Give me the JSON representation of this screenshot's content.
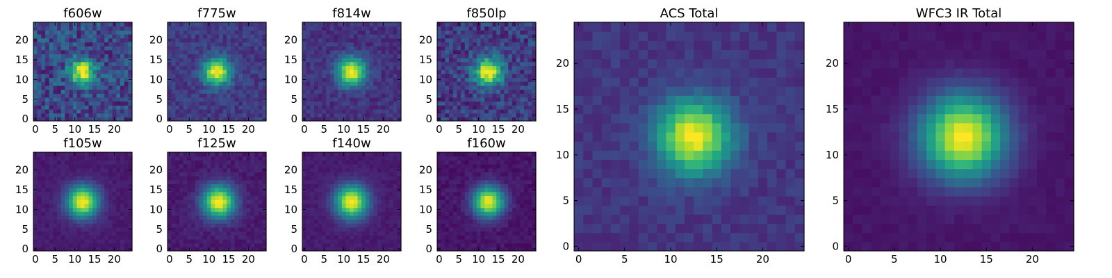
{
  "chart_data": [
    {
      "type": "heatmap",
      "title": "f606w",
      "xticks": [
        "0",
        "5",
        "10",
        "15",
        "20"
      ],
      "yticks": [
        "0",
        "5",
        "10",
        "15",
        "20"
      ],
      "xlim": [
        -0.5,
        24.5
      ],
      "ylim": [
        -0.5,
        24.5
      ],
      "grid_size": 25,
      "center": [
        12,
        12
      ],
      "sigma": 2.2,
      "background": 0.22,
      "noise": 0.16,
      "seed": 11,
      "colormap": "viridis"
    },
    {
      "type": "heatmap",
      "title": "f775w",
      "xticks": [
        "0",
        "5",
        "10",
        "15",
        "20"
      ],
      "yticks": [
        "0",
        "5",
        "10",
        "15",
        "20"
      ],
      "xlim": [
        -0.5,
        24.5
      ],
      "ylim": [
        -0.5,
        24.5
      ],
      "grid_size": 25,
      "center": [
        12,
        12
      ],
      "sigma": 2.4,
      "background": 0.18,
      "noise": 0.08,
      "seed": 23,
      "colormap": "viridis"
    },
    {
      "type": "heatmap",
      "title": "f814w",
      "xticks": [
        "0",
        "5",
        "10",
        "15",
        "20"
      ],
      "yticks": [
        "0",
        "5",
        "10",
        "15",
        "20"
      ],
      "xlim": [
        -0.5,
        24.5
      ],
      "ylim": [
        -0.5,
        24.5
      ],
      "grid_size": 25,
      "center": [
        12,
        12
      ],
      "sigma": 2.5,
      "background": 0.15,
      "noise": 0.07,
      "seed": 37,
      "colormap": "viridis"
    },
    {
      "type": "heatmap",
      "title": "f850lp",
      "xticks": [
        "0",
        "5",
        "10",
        "15",
        "20"
      ],
      "yticks": [
        "0",
        "5",
        "10",
        "15",
        "20"
      ],
      "xlim": [
        -0.5,
        24.5
      ],
      "ylim": [
        -0.5,
        24.5
      ],
      "grid_size": 25,
      "center": [
        12.5,
        12
      ],
      "sigma": 2.5,
      "background": 0.18,
      "noise": 0.13,
      "seed": 41,
      "colormap": "viridis"
    },
    {
      "type": "heatmap",
      "title": "f105w",
      "xticks": [
        "0",
        "5",
        "10",
        "15",
        "20"
      ],
      "yticks": [
        "0",
        "5",
        "10",
        "15",
        "20"
      ],
      "xlim": [
        -0.5,
        24.5
      ],
      "ylim": [
        -0.5,
        24.5
      ],
      "grid_size": 25,
      "center": [
        12,
        12
      ],
      "sigma": 2.8,
      "background": 0.08,
      "noise": 0.03,
      "seed": 53,
      "colormap": "viridis"
    },
    {
      "type": "heatmap",
      "title": "f125w",
      "xticks": [
        "0",
        "5",
        "10",
        "15",
        "20"
      ],
      "yticks": [
        "0",
        "5",
        "10",
        "15",
        "20"
      ],
      "xlim": [
        -0.5,
        24.5
      ],
      "ylim": [
        -0.5,
        24.5
      ],
      "grid_size": 25,
      "center": [
        12.5,
        12
      ],
      "sigma": 2.9,
      "background": 0.08,
      "noise": 0.04,
      "seed": 67,
      "colormap": "viridis"
    },
    {
      "type": "heatmap",
      "title": "f140w",
      "xticks": [
        "0",
        "5",
        "10",
        "15",
        "20"
      ],
      "yticks": [
        "0",
        "5",
        "10",
        "15",
        "20"
      ],
      "xlim": [
        -0.5,
        24.5
      ],
      "ylim": [
        -0.5,
        24.5
      ],
      "grid_size": 25,
      "center": [
        12,
        12
      ],
      "sigma": 2.9,
      "background": 0.08,
      "noise": 0.03,
      "seed": 71,
      "colormap": "viridis"
    },
    {
      "type": "heatmap",
      "title": "f160w",
      "xticks": [
        "0",
        "5",
        "10",
        "15",
        "20"
      ],
      "yticks": [
        "0",
        "5",
        "10",
        "15",
        "20"
      ],
      "xlim": [
        -0.5,
        24.5
      ],
      "ylim": [
        -0.5,
        24.5
      ],
      "grid_size": 25,
      "center": [
        12.5,
        12
      ],
      "sigma": 2.7,
      "background": 0.06,
      "noise": 0.04,
      "seed": 83,
      "colormap": "viridis"
    },
    {
      "type": "heatmap",
      "title": "ACS Total",
      "xticks": [
        "0",
        "5",
        "10",
        "15",
        "20"
      ],
      "yticks": [
        "0",
        "5",
        "10",
        "15",
        "20"
      ],
      "xlim": [
        -0.5,
        24.5
      ],
      "ylim": [
        -0.5,
        24.5
      ],
      "grid_size": 25,
      "center": [
        12.5,
        12
      ],
      "sigma": 2.8,
      "background": 0.16,
      "noise": 0.05,
      "seed": 97,
      "colormap": "viridis"
    },
    {
      "type": "heatmap",
      "title": "WFC3 IR Total",
      "xticks": [
        "0",
        "5",
        "10",
        "15",
        "20"
      ],
      "yticks": [
        "0",
        "5",
        "10",
        "15",
        "20"
      ],
      "xlim": [
        -0.5,
        24.5
      ],
      "ylim": [
        -0.5,
        24.5
      ],
      "grid_size": 25,
      "center": [
        12.5,
        12
      ],
      "sigma": 3.2,
      "background": 0.06,
      "noise": 0.02,
      "seed": 101,
      "colormap": "viridis"
    }
  ]
}
